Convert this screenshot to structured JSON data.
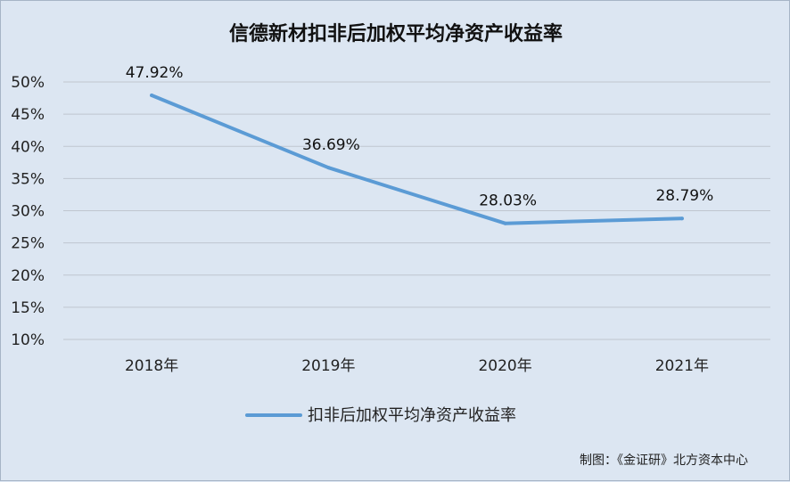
{
  "chart_data": {
    "type": "line",
    "title": "信德新材扣非后加权平均净资产收益率",
    "categories": [
      "2018年",
      "2019年",
      "2020年",
      "2021年"
    ],
    "series": [
      {
        "name": "扣非后加权平均净资产收益率",
        "values": [
          47.92,
          36.69,
          28.03,
          28.79
        ],
        "color": "#5b9bd5"
      }
    ],
    "data_labels": [
      "47.92%",
      "36.69%",
      "28.03%",
      "28.79%"
    ],
    "y_ticks": [
      "10%",
      "15%",
      "20%",
      "25%",
      "30%",
      "35%",
      "40%",
      "45%",
      "50%"
    ],
    "ylim": [
      10,
      50
    ],
    "grid": true,
    "legend_position": "bottom",
    "source_note": "制图：《金证研》北方资本中心"
  }
}
